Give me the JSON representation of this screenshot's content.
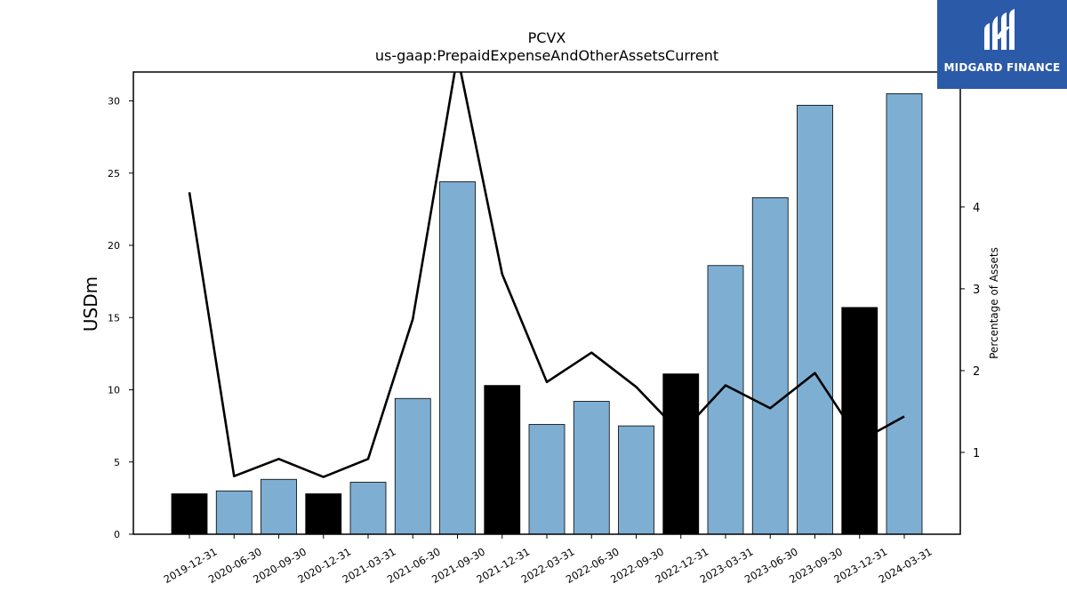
{
  "chart_data": {
    "type": "bar",
    "title": "PCVX",
    "subtitle": "us-gaap:PrepaidExpenseAndOtherAssetsCurrent",
    "ylabel": "USDm",
    "y2label": "Percentage of Assets",
    "ylim": [
      0,
      32
    ],
    "y2lim": [
      0,
      5.65
    ],
    "yticks": [
      0,
      5,
      10,
      15,
      20,
      25,
      30
    ],
    "y2ticks": [
      1,
      2,
      3,
      4
    ],
    "categories": [
      "2019-12-31",
      "2020-06-30",
      "2020-09-30",
      "2020-12-31",
      "2021-03-31",
      "2021-06-30",
      "2021-09-30",
      "2021-12-31",
      "2022-03-31",
      "2022-06-30",
      "2022-09-30",
      "2022-12-31",
      "2023-03-31",
      "2023-06-30",
      "2023-09-30",
      "2023-12-31",
      "2024-03-31"
    ],
    "series": [
      {
        "type": "bar",
        "values": [
          2.8,
          3.0,
          3.8,
          2.8,
          3.6,
          9.4,
          24.4,
          10.3,
          7.6,
          9.2,
          7.5,
          11.1,
          18.6,
          23.3,
          29.7,
          15.7,
          30.5
        ],
        "colors": [
          "#000000",
          "#7eafd3",
          "#7eafd3",
          "#000000",
          "#7eafd3",
          "#7eafd3",
          "#7eafd3",
          "#000000",
          "#7eafd3",
          "#7eafd3",
          "#7eafd3",
          "#000000",
          "#7eafd3",
          "#7eafd3",
          "#7eafd3",
          "#000000",
          "#7eafd3"
        ]
      },
      {
        "type": "line",
        "axis": "right",
        "color": "#000000",
        "values": [
          4.18,
          0.71,
          0.92,
          0.7,
          0.92,
          2.63,
          5.85,
          3.18,
          1.86,
          2.22,
          1.8,
          1.23,
          1.82,
          1.54,
          1.97,
          1.14,
          1.44
        ]
      }
    ],
    "grid": false,
    "legend": "none"
  },
  "logo": {
    "text": "MIDGARD FINANCE"
  }
}
